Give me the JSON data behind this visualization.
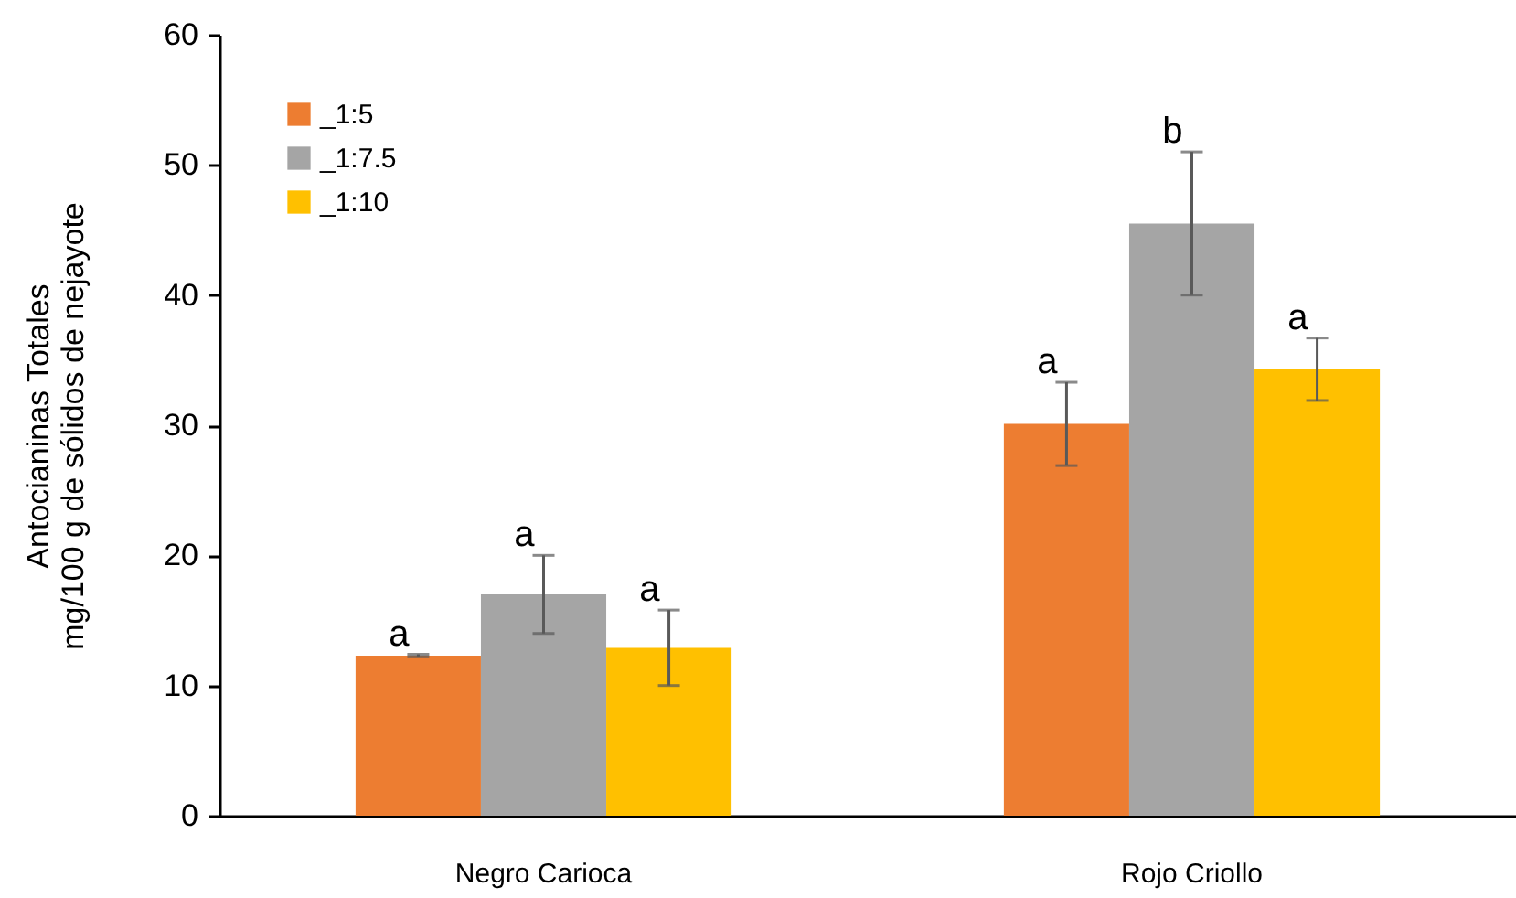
{
  "chart_data": {
    "type": "bar",
    "ylabel": "Antocianinas Totales\nmg/100 g de sólidos de nejayote",
    "categories": [
      "Negro Carioca",
      "Rojo Criollo"
    ],
    "series": [
      {
        "name": "_1:5",
        "color": "#ed7d31",
        "values": [
          12.3,
          30.1
        ],
        "errors": [
          0.1,
          3.2
        ],
        "value_labels": [
          "a",
          "a"
        ]
      },
      {
        "name": "_1:7.5",
        "color": "#a5a5a5",
        "values": [
          17.0,
          45.5
        ],
        "errors": [
          3.0,
          5.5
        ],
        "value_labels": [
          "a",
          "b"
        ]
      },
      {
        "name": "_1:10",
        "color": "#ffc000",
        "values": [
          12.9,
          34.3
        ],
        "errors": [
          2.9,
          2.4
        ],
        "value_labels": [
          "a",
          "a"
        ]
      }
    ],
    "ylim": [
      0,
      60
    ],
    "yticks": [
      0,
      10,
      20,
      30,
      40,
      50,
      60
    ],
    "grid": false,
    "legend": "top left"
  }
}
